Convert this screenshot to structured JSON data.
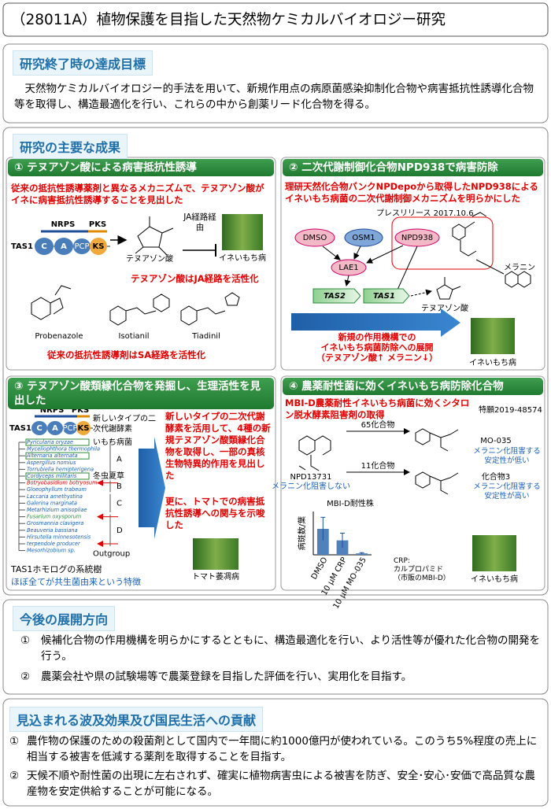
{
  "header": {
    "title": "（28011A）植物保護を目指した天然物ケミカルバイオロジー研究"
  },
  "goal": {
    "heading": "研究終了時の達成目標",
    "body": "天然物ケミカルバイオロジー的手法を用いて、新規作用点の病原菌感染抑制化合物や病害抵抗性誘導化合物等を取得し、構造最適化を行い、これらの中から創薬リード化合物を得る。"
  },
  "results": {
    "heading": "研究の主要な成果",
    "panels": [
      {
        "title": "① テヌアゾン酸による病害抵抗性誘導",
        "lead": "従来の抵抗性誘導薬剤と異なるメカニズムで、テヌアゾン酸がイネに病害抵抗性誘導することを見出した",
        "enzyme": {
          "nrps": "NRPS",
          "pks": "PKS",
          "name": "TAS1",
          "domains": [
            "C",
            "A",
            "PCP",
            "KS"
          ]
        },
        "compound": "テヌアゾン酸",
        "route": "JA経路経由",
        "photo": "イネいもち病",
        "finding": "テヌアゾン酸はJA経路を活性化",
        "references": [
          "Probenazole",
          "Isotianil",
          "Tiadinil"
        ],
        "contrast": "従来の抵抗性誘導剤はSA経路を活性化"
      },
      {
        "title": "② 二次代謝制御化合物NPD938で病害防除",
        "lead": "理研天然化合物バンクNPDepoから取得したNPD938によるイネいもち病菌の二次代謝制御メカニズムを明らかにした",
        "press": "プレスリリース 2017.10.6",
        "nodes": [
          "DMSO",
          "OSM1",
          "NPD938",
          "LAE1",
          "TAS2",
          "TAS1",
          "テヌアゾン酸",
          "メラニン"
        ],
        "outlook": [
          "新規の作用機構での",
          "イネいもち病菌防除への展開",
          "（テヌアゾン酸↑ メラニン↓）"
        ],
        "photo": "イネいもち病"
      },
      {
        "title": "③ テヌアゾン酸類縁化合物を発掘し、生理活性を見出した",
        "enzyme": {
          "nrps": "NRPS",
          "pks": "PKS",
          "name": "TAS1",
          "domains": [
            "C",
            "A",
            "PCP",
            "KS"
          ]
        },
        "enzyme_note": "新しいタイプの二次代謝酵素",
        "tree": [
          "Pyricularia oryzae",
          "Myceliophthora thermophila",
          "Alternaria alternata",
          "Aspergillus nomius",
          "Torrubiella hemipterigena",
          "Cordyceps militaris",
          "Botryobasidium botryosum",
          "Gloeophyllum trabeum",
          "Laccaria amethystina",
          "Galerina marginata",
          "Metarhizium anisopliae",
          "Fusarium oxysporum",
          "Grosmannia clavigera",
          "Beauveria bassiana",
          "Hirsutella minnesotensis",
          "terpendole producer",
          "Mesorhizobium sp."
        ],
        "tree_notes": [
          "いもち病菌",
          "冬虫夏草",
          "Outgroup"
        ],
        "clades": [
          "A",
          "B",
          "C",
          "D"
        ],
        "tree_caption": "TAS1ホモログの系統樹",
        "tree_feature": "ほぼ全てが共生菌由来という特徴",
        "finding": "新しいタイプの二次代謝酵素を活用して、4種の新規テヌアゾン酸類縁化合物を取得し、一部の真核生物特異的作用を見出した",
        "finding2": "更に、トマトでの病害抵抗性誘導への関与を示唆した",
        "photo": "トマト萎凋病"
      },
      {
        "title": "④ 農薬耐性菌に効くイネいもち病防除化合物",
        "lead": "MBI-D農薬耐性イネいもち病菌に効くシタロン脱水酵素阻害剤の取得",
        "patent": "特願2019-48574",
        "hit": "NPD13731",
        "hit_note": "メラニン化阻害しない",
        "steps": [
          "65化合物",
          "11化合物"
        ],
        "products": [
          {
            "name": "MO-035",
            "note": "メラニン化阻害する安定性が低い"
          },
          {
            "name": "化合物3",
            "note": "メラニン化阻害する安定性が高い"
          }
        ],
        "chart": {
          "type": "bar",
          "title": "MBI-D耐性株",
          "y_label": "病斑数/葉",
          "categories": [
            "DMSO",
            "10 μM CRP",
            "10 μM MO-035"
          ],
          "values": [
            18,
            10,
            1
          ],
          "errors": [
            8,
            5,
            0.5
          ],
          "color": "#4f81bd",
          "ylim": [
            0,
            30
          ]
        },
        "legend": [
          "CRP:",
          "カルプロパミド",
          "（市販のMBI-D）"
        ],
        "photo": "イネいもち病"
      }
    ]
  },
  "future": {
    "heading": "今後の展開方向",
    "items": [
      {
        "marker": "①",
        "text": "候補化合物の作用機構を明らかにするとともに、構造最適化を行い、より活性等が優れた化合物の開発を行う。"
      },
      {
        "marker": "②",
        "text": "農薬会社や県の試験場等で農薬登録を目指した評価を行い、実用化を目指す。"
      }
    ]
  },
  "impact": {
    "heading": "見込まれる波及効果及び国民生活への貢献",
    "items": [
      {
        "marker": "①",
        "text": "農作物の保護のための殺菌剤として国内で一年間に約1000億円が使われている。このうち5%程度の売上に相当する被害を低減する薬剤を取得することを目指す。"
      },
      {
        "marker": "②",
        "text": "天候不順や耐性菌の出現に左右されず、確実に植物病害虫による被害を防ぎ、安全･安心･安価で高品質な農産物を安定供給することが可能になる。"
      }
    ]
  }
}
